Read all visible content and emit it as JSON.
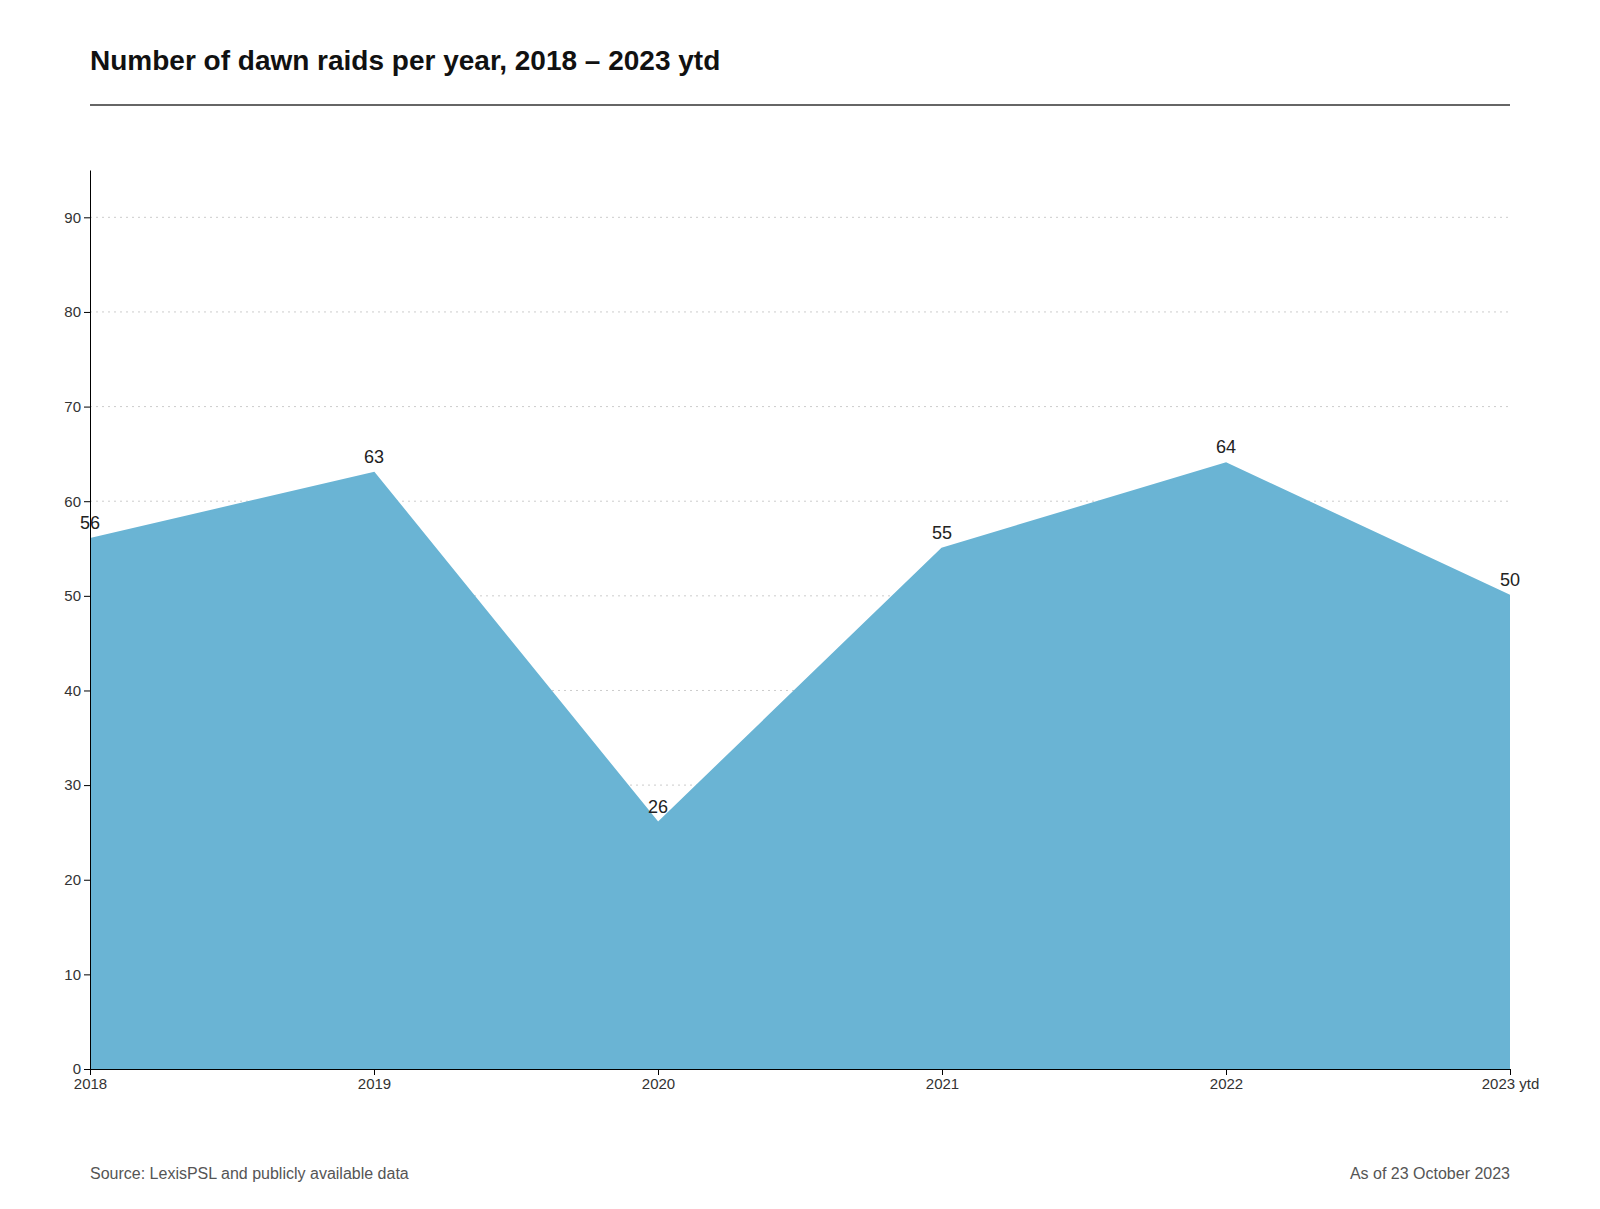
{
  "chart_data": {
    "type": "area",
    "title": "Number of dawn raids per year, 2018 – 2023 ytd",
    "categories": [
      "2018",
      "2019",
      "2020",
      "2021",
      "2022",
      "2023 ytd"
    ],
    "values": [
      56,
      63,
      26,
      55,
      64,
      50
    ],
    "color": "#6ab4d4",
    "ylim": [
      0,
      95
    ],
    "yticks": [
      0,
      10,
      20,
      30,
      40,
      50,
      60,
      70,
      80,
      90
    ],
    "grid": true,
    "data_labels": true,
    "annotations": [
      "Source: LexisPSL and publicly available data",
      "As of 23 October 2023"
    ]
  }
}
